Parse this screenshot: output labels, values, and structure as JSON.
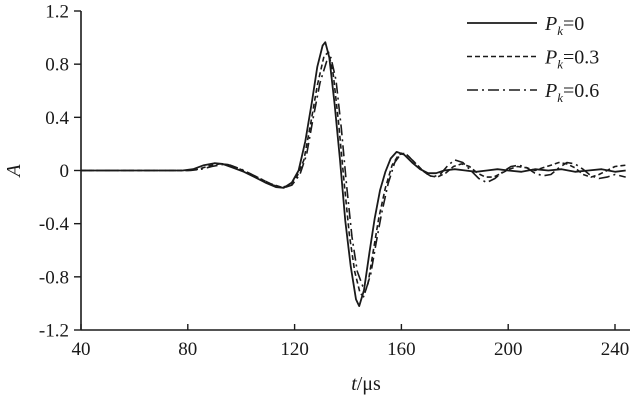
{
  "figure": {
    "background": "#ffffff",
    "stroke_color": "#1a1a1a",
    "text_color": "#1a1a1a"
  },
  "chart_data": {
    "type": "line",
    "title": "",
    "xlabel_parts": [
      {
        "text": "t",
        "italic": true
      },
      {
        "text": "/μs",
        "italic": false
      }
    ],
    "ylabel": "A",
    "xlim": [
      40,
      240
    ],
    "ylim": [
      -1.2,
      1.2
    ],
    "x_ticks": [
      40,
      80,
      120,
      160,
      200,
      240
    ],
    "x_tick_labels": [
      "40",
      "80",
      "120",
      "160",
      "200",
      "240"
    ],
    "y_ticks": [
      1.2,
      0.8,
      0.4,
      0,
      -0.4,
      -0.8,
      -1.2
    ],
    "y_tick_labels": [
      "1.2",
      "0.8",
      "0.4",
      "0",
      "-0.4",
      "-0.8",
      "-1.2"
    ],
    "grid": false,
    "legend_position": "top-right",
    "series": [
      {
        "name": "Pk=0",
        "label": {
          "base": "P",
          "sub": "k",
          "value": "=0"
        },
        "style": "solid",
        "points": [
          [
            40,
            0
          ],
          [
            60,
            0
          ],
          [
            70,
            0
          ],
          [
            78,
            0
          ],
          [
            82,
            0.01
          ],
          [
            86,
            0.04
          ],
          [
            90,
            0.055
          ],
          [
            93,
            0.05
          ],
          [
            97,
            0.02
          ],
          [
            101,
            -0.01
          ],
          [
            105,
            -0.05
          ],
          [
            109,
            -0.09
          ],
          [
            113,
            -0.125
          ],
          [
            116,
            -0.13
          ],
          [
            119,
            -0.09
          ],
          [
            121.5,
            0
          ],
          [
            124,
            0.22
          ],
          [
            126.5,
            0.52
          ],
          [
            128.5,
            0.78
          ],
          [
            130.5,
            0.94
          ],
          [
            131.5,
            0.965
          ],
          [
            133,
            0.85
          ],
          [
            135,
            0.5
          ],
          [
            137,
            0.08
          ],
          [
            139,
            -0.38
          ],
          [
            141,
            -0.72
          ],
          [
            143,
            -0.97
          ],
          [
            144.2,
            -1.02
          ],
          [
            146,
            -0.9
          ],
          [
            148,
            -0.62
          ],
          [
            150,
            -0.36
          ],
          [
            152,
            -0.15
          ],
          [
            154,
            -0.01
          ],
          [
            156,
            0.09
          ],
          [
            158.2,
            0.14
          ],
          [
            161,
            0.12
          ],
          [
            164,
            0.06
          ],
          [
            167,
            0.01
          ],
          [
            170,
            -0.02
          ],
          [
            173,
            -0.02
          ],
          [
            176,
            0
          ],
          [
            180,
            0.01
          ],
          [
            184,
            0
          ],
          [
            188,
            -0.01
          ],
          [
            192,
            0
          ],
          [
            196,
            0.01
          ],
          [
            200,
            0
          ],
          [
            205,
            -0.01
          ],
          [
            210,
            0.01
          ],
          [
            215,
            0
          ],
          [
            220,
            0.01
          ],
          [
            225,
            -0.01
          ],
          [
            230,
            0
          ],
          [
            235,
            0.01
          ],
          [
            240,
            -0.01
          ],
          [
            244,
            0
          ]
        ]
      },
      {
        "name": "Pk=0.3",
        "label": {
          "base": "P",
          "sub": "k",
          "value": "=0.3"
        },
        "style": "dashed",
        "points": [
          [
            40,
            0
          ],
          [
            60,
            0
          ],
          [
            70,
            0
          ],
          [
            80,
            0
          ],
          [
            84,
            0.01
          ],
          [
            88,
            0.035
          ],
          [
            92,
            0.05
          ],
          [
            95,
            0.045
          ],
          [
            99,
            0.015
          ],
          [
            103,
            -0.02
          ],
          [
            107,
            -0.06
          ],
          [
            111,
            -0.1
          ],
          [
            115,
            -0.125
          ],
          [
            118,
            -0.115
          ],
          [
            121,
            -0.04
          ],
          [
            123.5,
            0.08
          ],
          [
            126,
            0.35
          ],
          [
            128.5,
            0.64
          ],
          [
            131,
            0.86
          ],
          [
            132.7,
            0.89
          ],
          [
            134.5,
            0.72
          ],
          [
            136.5,
            0.35
          ],
          [
            138.5,
            -0.08
          ],
          [
            140.5,
            -0.48
          ],
          [
            142.5,
            -0.76
          ],
          [
            144.5,
            -0.92
          ],
          [
            145.8,
            -0.95
          ],
          [
            147.5,
            -0.85
          ],
          [
            149.5,
            -0.6
          ],
          [
            151.5,
            -0.36
          ],
          [
            154,
            -0.13
          ],
          [
            156.5,
            0.04
          ],
          [
            159,
            0.12
          ],
          [
            161.5,
            0.13
          ],
          [
            164.5,
            0.07
          ],
          [
            167.5,
            0.01
          ],
          [
            170.5,
            -0.04
          ],
          [
            173.5,
            -0.05
          ],
          [
            176.5,
            -0.02
          ],
          [
            179.5,
            0.03
          ],
          [
            182.5,
            0.05
          ],
          [
            185.5,
            0.03
          ],
          [
            188.5,
            -0.02
          ],
          [
            191.5,
            -0.05
          ],
          [
            194.5,
            -0.05
          ],
          [
            197.5,
            -0.02
          ],
          [
            200.5,
            0.01
          ],
          [
            203.5,
            0.03
          ],
          [
            207,
            0.02
          ],
          [
            210,
            0
          ],
          [
            213,
            0.02
          ],
          [
            216,
            0.04
          ],
          [
            219,
            0.06
          ],
          [
            222,
            0.05
          ],
          [
            225,
            0.02
          ],
          [
            228,
            -0.03
          ],
          [
            231,
            -0.05
          ],
          [
            234,
            -0.03
          ],
          [
            237,
            0
          ],
          [
            240,
            0.03
          ],
          [
            244,
            0.04
          ]
        ]
      },
      {
        "name": "Pk=0.6",
        "label": {
          "base": "P",
          "sub": "k",
          "value": "=0.6"
        },
        "style": "dashdot",
        "points": [
          [
            40,
            0
          ],
          [
            60,
            0
          ],
          [
            70,
            0
          ],
          [
            81,
            0
          ],
          [
            85,
            0.01
          ],
          [
            89,
            0.03
          ],
          [
            93,
            0.045
          ],
          [
            96,
            0.04
          ],
          [
            100,
            0.01
          ],
          [
            104,
            -0.03
          ],
          [
            108,
            -0.07
          ],
          [
            112,
            -0.11
          ],
          [
            116,
            -0.13
          ],
          [
            119,
            -0.11
          ],
          [
            122,
            -0.03
          ],
          [
            124.5,
            0.12
          ],
          [
            127,
            0.4
          ],
          [
            129.5,
            0.66
          ],
          [
            132,
            0.82
          ],
          [
            133.6,
            0.85
          ],
          [
            135.5,
            0.68
          ],
          [
            137.5,
            0.32
          ],
          [
            139.5,
            -0.12
          ],
          [
            141.5,
            -0.5
          ],
          [
            143.5,
            -0.76
          ],
          [
            145.5,
            -0.87
          ],
          [
            146.8,
            -0.89
          ],
          [
            148.5,
            -0.78
          ],
          [
            150.5,
            -0.55
          ],
          [
            152.5,
            -0.33
          ],
          [
            155,
            -0.1
          ],
          [
            157.5,
            0.06
          ],
          [
            160,
            0.13
          ],
          [
            162.5,
            0.11
          ],
          [
            165.5,
            0.05
          ],
          [
            168.5,
            -0.01
          ],
          [
            171.5,
            -0.05
          ],
          [
            174.5,
            -0.03
          ],
          [
            177.5,
            0.04
          ],
          [
            180,
            0.08
          ],
          [
            183,
            0.06
          ],
          [
            186,
            0
          ],
          [
            189,
            -0.06
          ],
          [
            192,
            -0.09
          ],
          [
            195,
            -0.06
          ],
          [
            198,
            -0.01
          ],
          [
            201,
            0.03
          ],
          [
            204,
            0.04
          ],
          [
            207,
            0.02
          ],
          [
            210,
            -0.02
          ],
          [
            213,
            -0.04
          ],
          [
            216,
            -0.03
          ],
          [
            219,
            0.02
          ],
          [
            222,
            0.06
          ],
          [
            225,
            0.05
          ],
          [
            228,
            0.01
          ],
          [
            231,
            -0.04
          ],
          [
            234,
            -0.06
          ],
          [
            237,
            -0.05
          ],
          [
            240,
            -0.03
          ],
          [
            244,
            -0.05
          ]
        ]
      }
    ]
  }
}
